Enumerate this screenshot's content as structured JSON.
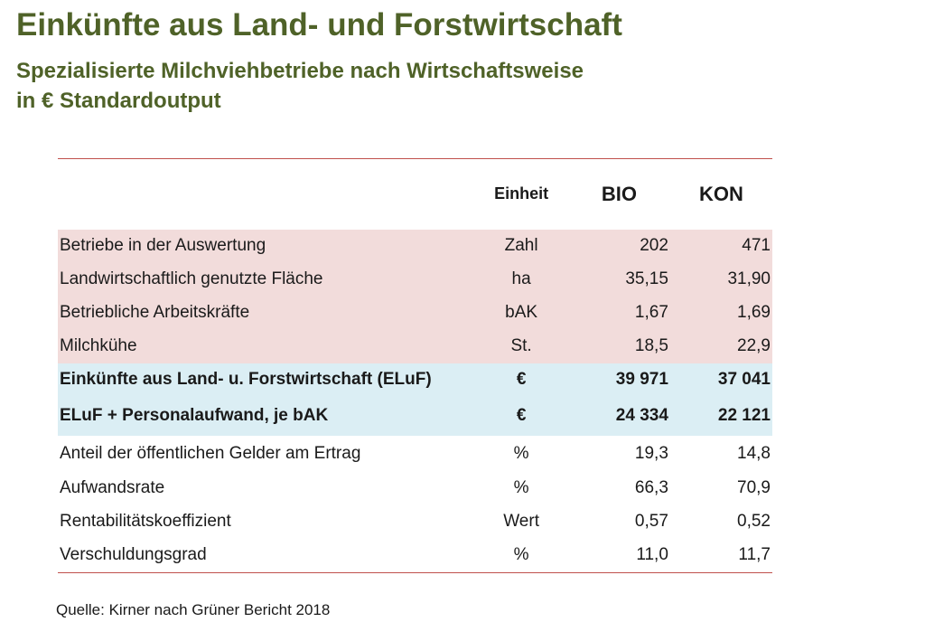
{
  "title": "Einkünfte aus Land- und Forstwirtschaft",
  "subtitle_line1": "Spezialisierte Milchviehbetriebe nach Wirtschaftsweise",
  "subtitle_line2": "in € Standardoutput",
  "table": {
    "header": {
      "unit": "Einheit",
      "col1": "BIO",
      "col2": "KON"
    },
    "rows": [
      {
        "label": "Betriebe in der Auswertung",
        "unit": "Zahl",
        "bio": "202",
        "kon": "471"
      },
      {
        "label": "Landwirtschaftlich genutzte Fläche",
        "unit": "ha",
        "bio": "35,15",
        "kon": "31,90"
      },
      {
        "label": "Betriebliche Arbeitskräfte",
        "unit": "bAK",
        "bio": "1,67",
        "kon": "1,69"
      },
      {
        "label": "Milchkühe",
        "unit": "St.",
        "bio": "18,5",
        "kon": "22,9"
      },
      {
        "label": "Einkünfte aus Land- u. Forstwirtschaft (ELuF)",
        "unit": "€",
        "bio": "39 971",
        "kon": "37 041"
      },
      {
        "label": "ELuF + Personalaufwand, je bAK",
        "unit": "€",
        "bio": "24 334",
        "kon": "22 121"
      },
      {
        "label": "Anteil der öffentlichen Gelder am Ertrag",
        "unit": "%",
        "bio": "19,3",
        "kon": "14,8"
      },
      {
        "label": "Aufwandsrate",
        "unit": "%",
        "bio": "66,3",
        "kon": "70,9"
      },
      {
        "label": "Rentabilitätskoeffizient",
        "unit": "Wert",
        "bio": "0,57",
        "kon": "0,52"
      },
      {
        "label": "Verschuldungsgrad",
        "unit": "%",
        "bio": "11,0",
        "kon": "11,7"
      }
    ]
  },
  "source": "Quelle: Kirner nach Grüner Bericht 2018",
  "colors": {
    "title": "#4f6228",
    "pink_row": "#f2dcdb",
    "blue_row": "#dbeef4",
    "rule": "#c0504d"
  }
}
